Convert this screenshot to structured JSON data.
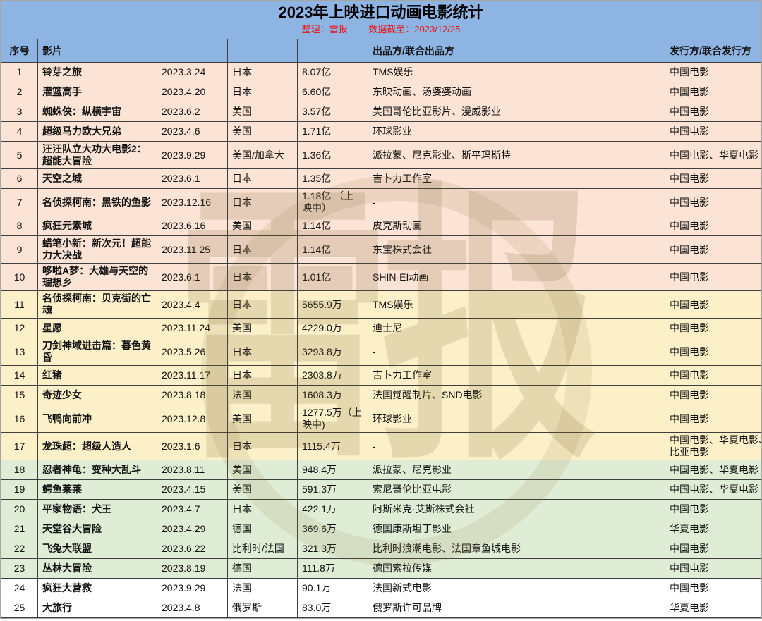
{
  "title": "2023年上映进口动画电影统计",
  "subtitle": {
    "prepared_by": "整理：雷报",
    "data_cutoff": "数据截至：2023/12/25"
  },
  "watermark_text": "雷报",
  "colors": {
    "band_blue": "#8DB4E2",
    "subtitle_red": "#EE1111",
    "grid": "#3F3F3F",
    "group_peach": "#FBE3D5",
    "group_yellow": "#FCF0C9",
    "group_green": "#DFEDD6",
    "group_white": "#FFFFFF"
  },
  "table": {
    "headers": {
      "no": "序号",
      "film": "影片",
      "date": "",
      "country": "",
      "box_office": "",
      "producer": "出品方/联合出品方",
      "distributor": "发行方/联合发行方"
    },
    "rows": [
      {
        "no": "1",
        "film": "铃芽之旅",
        "date": "2023.3.24",
        "country": "日本",
        "box_office": "8.07亿",
        "producer": "TMS娱乐",
        "distributor": "中国电影",
        "group": "peach"
      },
      {
        "no": "2",
        "film": "灌篮高手",
        "date": "2023.4.20",
        "country": "日本",
        "box_office": "6.60亿",
        "producer": "东映动画、汤婆婆动画",
        "distributor": "中国电影",
        "group": "peach"
      },
      {
        "no": "3",
        "film": "蜘蛛侠：纵横宇宙",
        "date": "2023.6.2",
        "country": "美国",
        "box_office": "3.57亿",
        "producer": "美国哥伦比亚影片、漫威影业",
        "distributor": "中国电影",
        "group": "peach"
      },
      {
        "no": "4",
        "film": "超级马力欧大兄弟",
        "date": "2023.4.6",
        "country": "美国",
        "box_office": "1.71亿",
        "producer": "环球影业",
        "distributor": "中国电影",
        "group": "peach"
      },
      {
        "no": "5",
        "film": "汪汪队立大功大电影2：超能大冒险",
        "date": "2023.9.29",
        "country": "美国/加拿大",
        "box_office": "1.36亿",
        "producer": "派拉蒙、尼克影业、斯平玛斯特",
        "distributor": "中国电影、华夏电影",
        "group": "peach"
      },
      {
        "no": "6",
        "film": "天空之城",
        "date": "2023.6.1",
        "country": "日本",
        "box_office": "1.35亿",
        "producer": "吉卜力工作室",
        "distributor": "中国电影",
        "group": "peach"
      },
      {
        "no": "7",
        "film": "名侦探柯南：黑铁的鱼影",
        "date": "2023.12.16",
        "country": "日本",
        "box_office": "1.18亿 （上映中）",
        "producer": "-",
        "distributor": "中国电影",
        "group": "peach"
      },
      {
        "no": "8",
        "film": "疯狂元素城",
        "date": "2023.6.16",
        "country": "美国",
        "box_office": "1.14亿",
        "producer": "皮克斯动画",
        "distributor": "中国电影",
        "group": "peach"
      },
      {
        "no": "9",
        "film": "蜡笔小新：新次元！超能力大决战",
        "date": "2023.11.25",
        "country": "日本",
        "box_office": "1.14亿",
        "producer": "东宝株式会社",
        "distributor": "中国电影",
        "group": "peach"
      },
      {
        "no": "10",
        "film": "哆啦A梦：大雄与天空的理想乡",
        "date": "2023.6.1",
        "country": "日本",
        "box_office": "1.01亿",
        "producer": "SHIN-EI动画",
        "distributor": "中国电影",
        "group": "peach"
      },
      {
        "no": "11",
        "film": "名侦探柯南：贝克街的亡魂",
        "date": "2023.4.4",
        "country": "日本",
        "box_office": "5655.9万",
        "producer": "TMS娱乐",
        "distributor": "中国电影",
        "group": "yellow"
      },
      {
        "no": "12",
        "film": "星愿",
        "date": "2023.11.24",
        "country": "美国",
        "box_office": "4229.0万",
        "producer": "迪士尼",
        "distributor": "中国电影",
        "group": "yellow"
      },
      {
        "no": "13",
        "film": "刀剑神域进击篇：暮色黄昏",
        "date": "2023.5.26",
        "country": "日本",
        "box_office": "3293.8万",
        "producer": "-",
        "distributor": "中国电影",
        "group": "yellow"
      },
      {
        "no": "14",
        "film": "红猪",
        "date": "2023.11.17",
        "country": "日本",
        "box_office": "2303.8万",
        "producer": "吉卜力工作室",
        "distributor": "中国电影",
        "group": "yellow"
      },
      {
        "no": "15",
        "film": "奇迹少女",
        "date": "2023.8.18",
        "country": "法国",
        "box_office": "1608.3万",
        "producer": "法国觉醒制片、SND电影",
        "distributor": "中国电影",
        "group": "yellow"
      },
      {
        "no": "16",
        "film": "飞鸭向前冲",
        "date": "2023.12.8",
        "country": "美国",
        "box_office": "1277.5万（上映中)",
        "producer": "环球影业",
        "distributor": "中国电影",
        "group": "yellow"
      },
      {
        "no": "17",
        "film": "龙珠超：超级人造人",
        "date": "2023.1.6",
        "country": "日本",
        "box_office": "1115.4万",
        "producer": "-",
        "distributor": "中国电影、华夏电影、索尼哥伦比亚电影",
        "group": "yellow"
      },
      {
        "no": "18",
        "film": "忍者神龟：变种大乱斗",
        "date": "2023.8.11",
        "country": "美国",
        "box_office": "948.4万",
        "producer": "派拉蒙、尼克影业",
        "distributor": "中国电影、华夏电影",
        "group": "green"
      },
      {
        "no": "19",
        "film": "鳄鱼莱莱",
        "date": "2023.4.15",
        "country": "美国",
        "box_office": "591.3万",
        "producer": "索尼哥伦比亚电影",
        "distributor": "中国电影、华夏电影",
        "group": "green"
      },
      {
        "no": "20",
        "film": "平家物语：犬王",
        "date": "2023.4.7",
        "country": "日本",
        "box_office": "422.1万",
        "producer": "阿斯米克·艾斯株式会社",
        "distributor": "中国电影",
        "group": "green"
      },
      {
        "no": "21",
        "film": "天堂谷大冒险",
        "date": "2023.4.29",
        "country": "德国",
        "box_office": "369.6万",
        "producer": "德国康斯坦丁影业",
        "distributor": "华夏电影",
        "group": "green"
      },
      {
        "no": "22",
        "film": "飞兔大联盟",
        "date": "2023.6.22",
        "country": "比利时/法国",
        "box_office": "321.3万",
        "producer": "比利时浪潮电影、法国章鱼城电影",
        "distributor": "中国电影",
        "group": "green"
      },
      {
        "no": "23",
        "film": "丛林大冒险",
        "date": "2023.8.19",
        "country": "德国",
        "box_office": "111.8万",
        "producer": "德国索拉传媒",
        "distributor": "中国电影",
        "group": "green"
      },
      {
        "no": "24",
        "film": "疯狂大营救",
        "date": "2023.9.29",
        "country": "法国",
        "box_office": "90.1万",
        "producer": "法国新式电影",
        "distributor": "中国电影",
        "group": "white"
      },
      {
        "no": "25",
        "film": "大旅行",
        "date": "2023.4.8",
        "country": "俄罗斯",
        "box_office": "83.0万",
        "producer": "俄罗斯许可品牌",
        "distributor": "华夏电影",
        "group": "white"
      }
    ]
  }
}
